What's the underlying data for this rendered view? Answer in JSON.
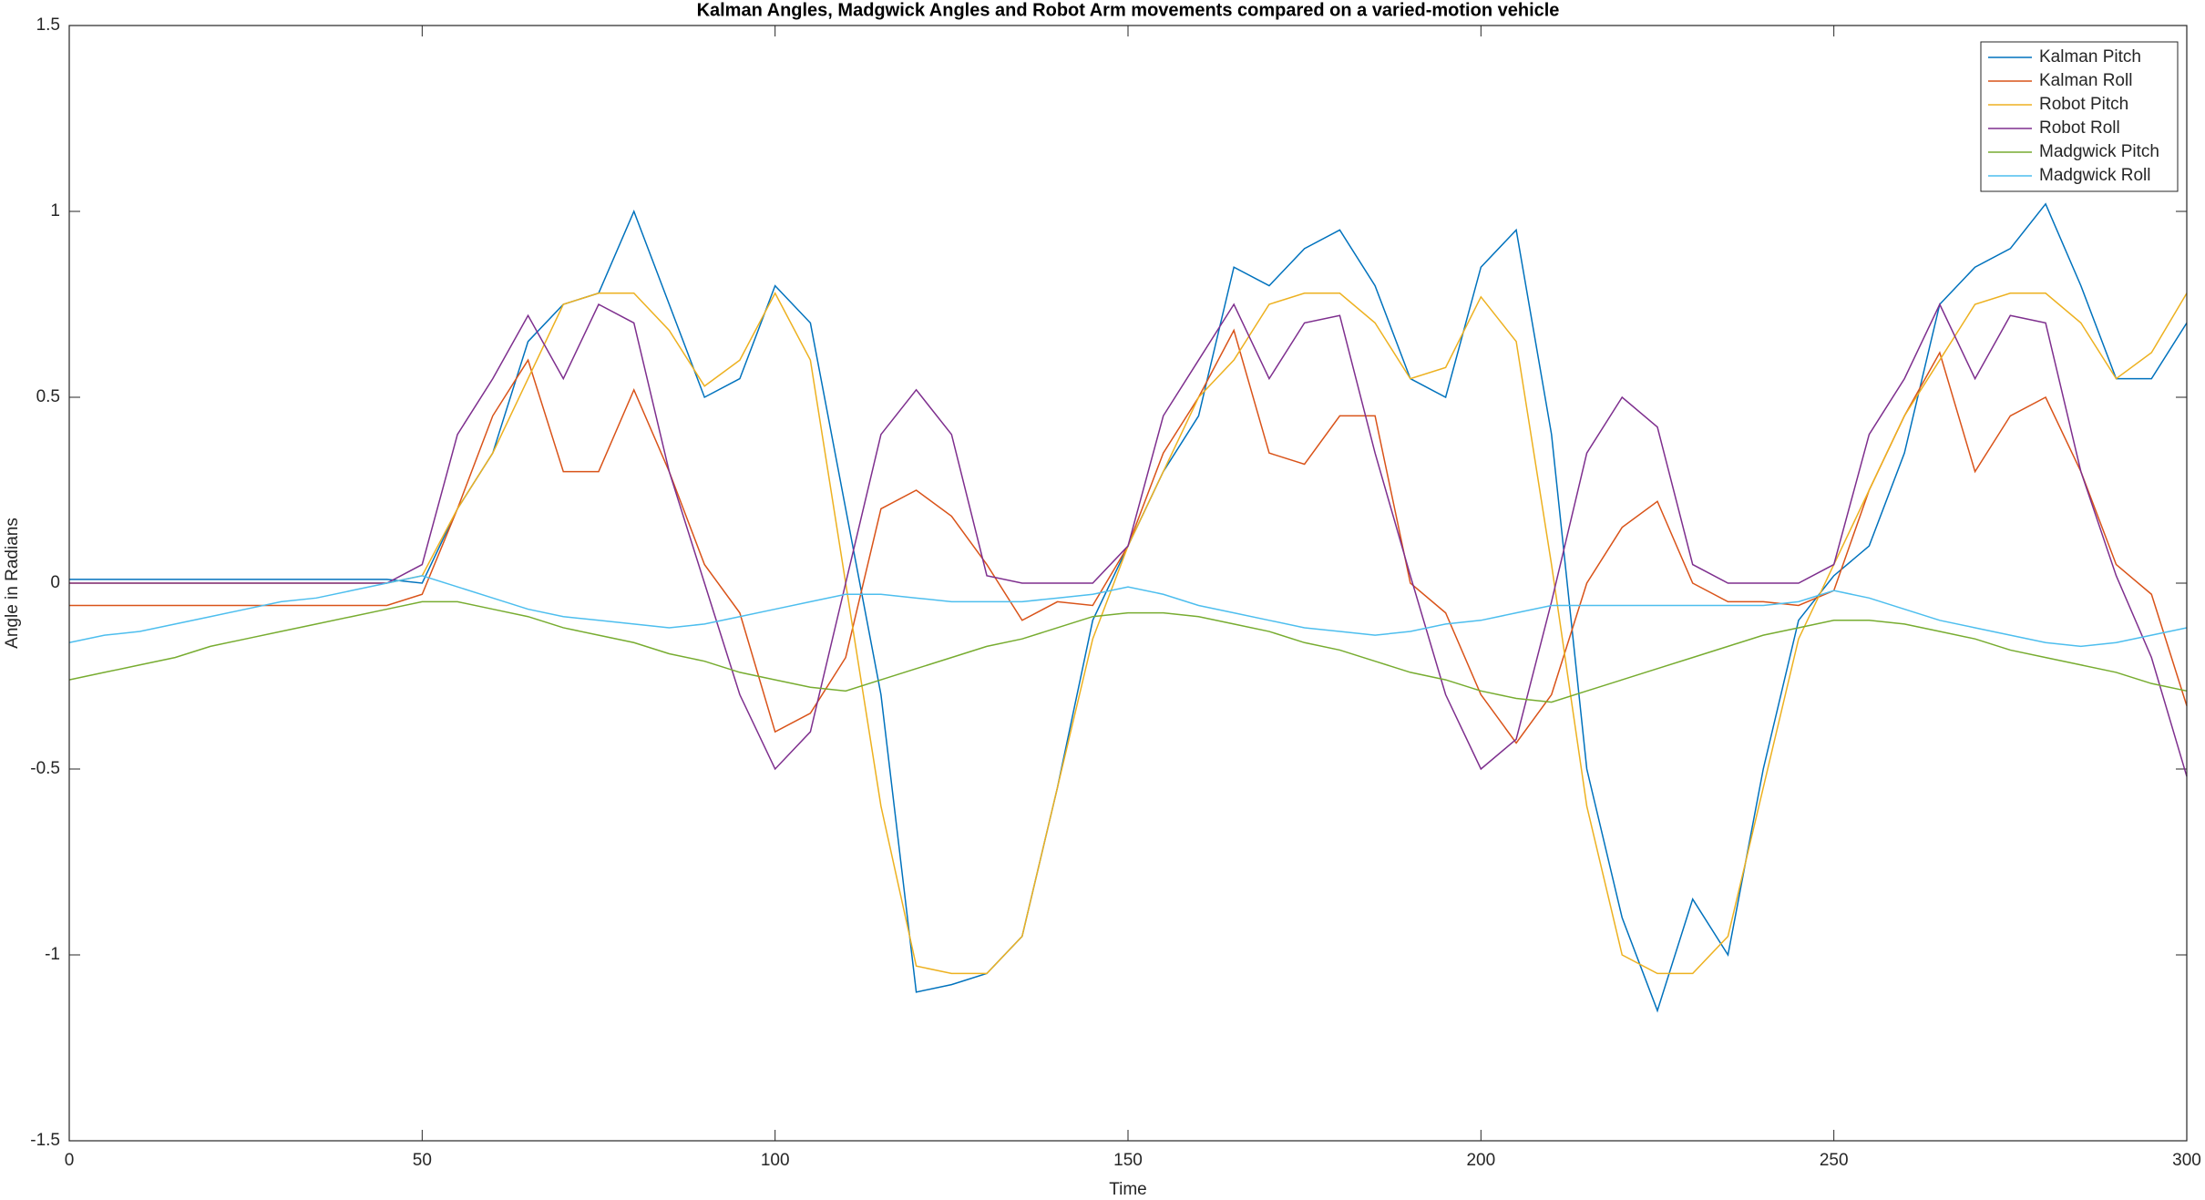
{
  "chart_data": {
    "type": "line",
    "title": "Kalman Angles, Madgwick Angles and Robot Arm movements compared on a varied-motion vehicle",
    "x_label": "Time",
    "y_label": "Angle in Radians",
    "x": [
      0,
      5,
      10,
      15,
      20,
      25,
      30,
      35,
      40,
      45,
      50,
      55,
      60,
      65,
      70,
      75,
      80,
      85,
      90,
      95,
      100,
      105,
      110,
      115,
      120,
      125,
      130,
      135,
      140,
      145,
      150,
      155,
      160,
      165,
      170,
      175,
      180,
      185,
      190,
      195,
      200,
      205,
      210,
      215,
      220,
      225,
      230,
      235,
      240,
      245,
      250,
      255,
      260,
      265,
      270,
      275,
      280,
      285,
      290,
      295,
      300
    ],
    "series": [
      {
        "name": "Kalman Pitch",
        "color": "#0072BD",
        "values": [
          0.01,
          0.01,
          0.01,
          0.01,
          0.01,
          0.01,
          0.01,
          0.01,
          0.01,
          0.01,
          0.0,
          0.2,
          0.35,
          0.65,
          0.75,
          0.78,
          1.0,
          0.75,
          0.5,
          0.55,
          0.8,
          0.7,
          0.2,
          -0.3,
          -1.1,
          -1.08,
          -1.05,
          -0.95,
          -0.55,
          -0.1,
          0.1,
          0.3,
          0.45,
          0.85,
          0.8,
          0.9,
          0.95,
          0.8,
          0.55,
          0.5,
          0.85,
          0.95,
          0.4,
          -0.5,
          -0.9,
          -1.15,
          -0.85,
          -1.0,
          -0.5,
          -0.1,
          0.02,
          0.1,
          0.35,
          0.75,
          0.85,
          0.9,
          1.02,
          0.8,
          0.55,
          0.55,
          0.7
        ]
      },
      {
        "name": "Kalman Roll",
        "color": "#D95319",
        "values": [
          -0.06,
          -0.06,
          -0.06,
          -0.06,
          -0.06,
          -0.06,
          -0.06,
          -0.06,
          -0.06,
          -0.06,
          -0.03,
          0.2,
          0.45,
          0.6,
          0.3,
          0.3,
          0.52,
          0.3,
          0.05,
          -0.08,
          -0.4,
          -0.35,
          -0.2,
          0.2,
          0.25,
          0.18,
          0.05,
          -0.1,
          -0.05,
          -0.06,
          0.1,
          0.35,
          0.5,
          0.68,
          0.35,
          0.32,
          0.45,
          0.45,
          0.0,
          -0.08,
          -0.3,
          -0.43,
          -0.3,
          0.0,
          0.15,
          0.22,
          0.0,
          -0.05,
          -0.05,
          -0.06,
          -0.02,
          0.25,
          0.45,
          0.62,
          0.3,
          0.45,
          0.5,
          0.3,
          0.05,
          -0.03,
          -0.33
        ]
      },
      {
        "name": "Robot Pitch",
        "color": "#EDB120",
        "values": [
          0,
          0,
          0,
          0,
          0,
          0,
          0,
          0,
          0,
          0,
          0.02,
          0.2,
          0.35,
          0.55,
          0.75,
          0.78,
          0.78,
          0.68,
          0.53,
          0.6,
          0.78,
          0.6,
          0.0,
          -0.6,
          -1.03,
          -1.05,
          -1.05,
          -0.95,
          -0.55,
          -0.15,
          0.1,
          0.3,
          0.5,
          0.6,
          0.75,
          0.78,
          0.78,
          0.7,
          0.55,
          0.58,
          0.77,
          0.65,
          0.05,
          -0.6,
          -1.0,
          -1.05,
          -1.05,
          -0.95,
          -0.55,
          -0.15,
          0.05,
          0.25,
          0.45,
          0.6,
          0.75,
          0.78,
          0.78,
          0.7,
          0.55,
          0.62,
          0.78
        ]
      },
      {
        "name": "Robot Roll",
        "color": "#7E2F8E",
        "values": [
          0,
          0,
          0,
          0,
          0,
          0,
          0,
          0,
          0,
          0,
          0.05,
          0.4,
          0.55,
          0.72,
          0.55,
          0.75,
          0.7,
          0.3,
          0.0,
          -0.3,
          -0.5,
          -0.4,
          0.0,
          0.4,
          0.52,
          0.4,
          0.02,
          0,
          0,
          0,
          0.1,
          0.45,
          0.6,
          0.75,
          0.55,
          0.7,
          0.72,
          0.35,
          0.02,
          -0.3,
          -0.5,
          -0.42,
          -0.05,
          0.35,
          0.5,
          0.42,
          0.05,
          0,
          0,
          0,
          0.05,
          0.4,
          0.55,
          0.75,
          0.55,
          0.72,
          0.7,
          0.3,
          0.02,
          -0.2,
          -0.52
        ]
      },
      {
        "name": "Madgwick Pitch",
        "color": "#77AC30",
        "values": [
          -0.26,
          -0.24,
          -0.22,
          -0.2,
          -0.17,
          -0.15,
          -0.13,
          -0.11,
          -0.09,
          -0.07,
          -0.05,
          -0.05,
          -0.07,
          -0.09,
          -0.12,
          -0.14,
          -0.16,
          -0.19,
          -0.21,
          -0.24,
          -0.26,
          -0.28,
          -0.29,
          -0.26,
          -0.23,
          -0.2,
          -0.17,
          -0.15,
          -0.12,
          -0.09,
          -0.08,
          -0.08,
          -0.09,
          -0.11,
          -0.13,
          -0.16,
          -0.18,
          -0.21,
          -0.24,
          -0.26,
          -0.29,
          -0.31,
          -0.32,
          -0.29,
          -0.26,
          -0.23,
          -0.2,
          -0.17,
          -0.14,
          -0.12,
          -0.1,
          -0.1,
          -0.11,
          -0.13,
          -0.15,
          -0.18,
          -0.2,
          -0.22,
          -0.24,
          -0.27,
          -0.29
        ]
      },
      {
        "name": "Madgwick Roll",
        "color": "#4DBEEE",
        "values": [
          -0.16,
          -0.14,
          -0.13,
          -0.11,
          -0.09,
          -0.07,
          -0.05,
          -0.04,
          -0.02,
          0.0,
          0.02,
          -0.01,
          -0.04,
          -0.07,
          -0.09,
          -0.1,
          -0.11,
          -0.12,
          -0.11,
          -0.09,
          -0.07,
          -0.05,
          -0.03,
          -0.03,
          -0.04,
          -0.05,
          -0.05,
          -0.05,
          -0.04,
          -0.03,
          -0.01,
          -0.03,
          -0.06,
          -0.08,
          -0.1,
          -0.12,
          -0.13,
          -0.14,
          -0.13,
          -0.11,
          -0.1,
          -0.08,
          -0.06,
          -0.06,
          -0.06,
          -0.06,
          -0.06,
          -0.06,
          -0.06,
          -0.05,
          -0.02,
          -0.04,
          -0.07,
          -0.1,
          -0.12,
          -0.14,
          -0.16,
          -0.17,
          -0.16,
          -0.14,
          -0.12
        ]
      }
    ],
    "xlim": [
      0,
      300
    ],
    "ylim": [
      -1.5,
      1.5
    ],
    "xticks": [
      0,
      50,
      100,
      150,
      200,
      250,
      300
    ],
    "yticks": [
      -1.5,
      -1,
      -0.5,
      0,
      0.5,
      1,
      1.5
    ],
    "grid": false,
    "legend": "upper right"
  }
}
